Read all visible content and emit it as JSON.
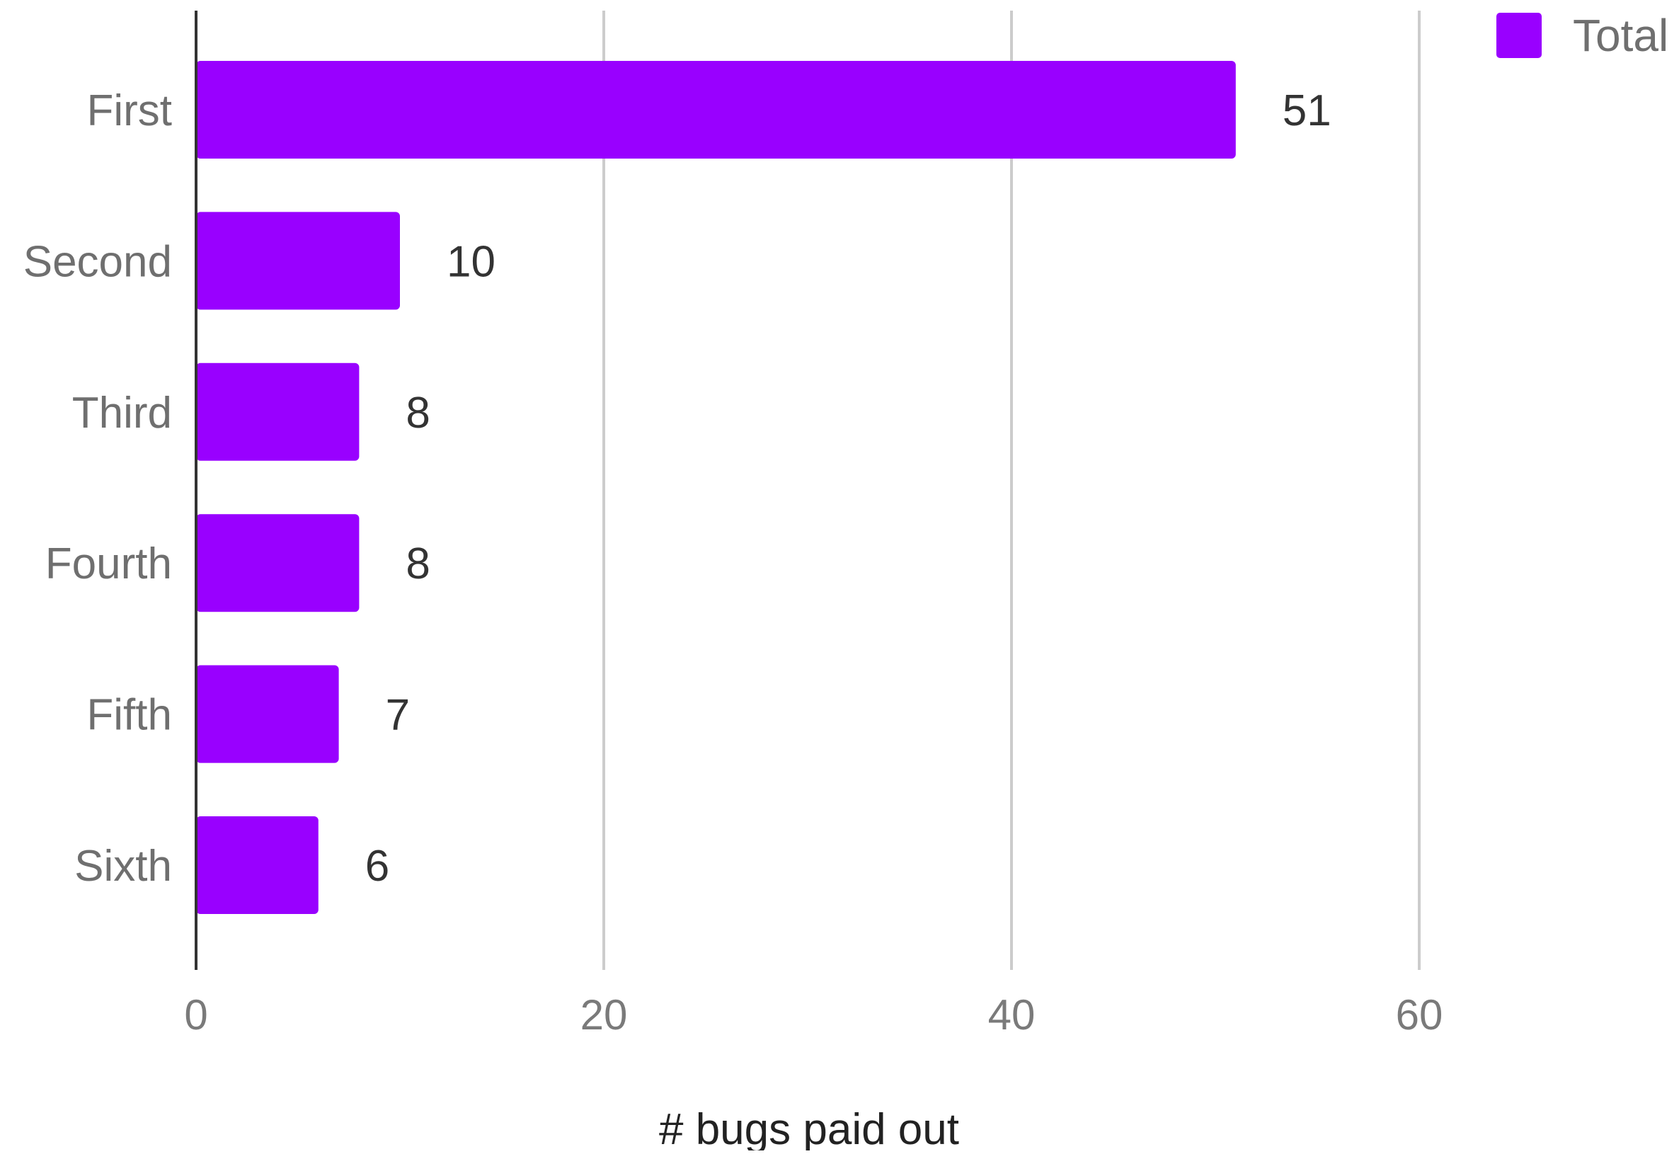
{
  "chart_data": {
    "type": "bar",
    "orientation": "horizontal",
    "categories": [
      "First",
      "Second",
      "Third",
      "Fourth",
      "Fifth",
      "Sixth"
    ],
    "series": [
      {
        "name": "Total",
        "values": [
          51,
          10,
          8,
          8,
          7,
          6
        ],
        "color": "#9900ff"
      }
    ],
    "value_labels": [
      "51",
      "10",
      "8",
      "8",
      "7",
      "6"
    ],
    "xlabel": "# bugs paid out",
    "ylabel": "",
    "xlim": [
      0,
      70
    ],
    "x_ticks": [
      0,
      20,
      40,
      60
    ],
    "x_tick_labels": [
      "0",
      "20",
      "40",
      "60"
    ],
    "grid": true,
    "legend_position": "top-right"
  }
}
